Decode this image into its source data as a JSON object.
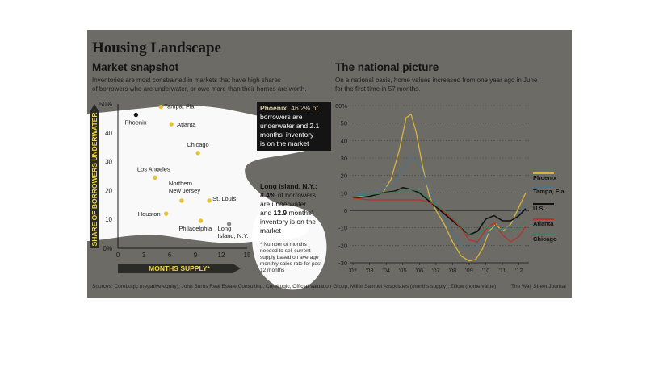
{
  "header": {
    "title": "Housing Landscape"
  },
  "left": {
    "subtitle": "Market snapshot",
    "description_1": "Inventories are most constrained in markets that have high shares",
    "description_2": "of borrowers who are underwater, or owe more than their homes are worth."
  },
  "right": {
    "subtitle": "The national picture",
    "description_1": "On a national basis, home values increased from one year ago in June",
    "description_2": "for the first time in 57 months."
  },
  "callouts": {
    "phoenix": {
      "line1_bold": "Phoenix:",
      "line1_rest": " 46.2% of",
      "line2": "borrowers are",
      "line3": "underwater and 2.1",
      "line4": "months' inventory",
      "line5": "is on the market"
    },
    "long_island": {
      "line1": "Long Island, N.Y.:",
      "line2_bold": "8.4%",
      "line2_rest": " of borrowers",
      "line3": "are underwater",
      "line4_pre": "and ",
      "line4_bold": "12.9",
      "line4_rest": " months'",
      "line5": "inventory is on the",
      "line6": "market"
    },
    "footnote": "* Number of months needed to sell current supply based on average monthly sales rate for past 12 months"
  },
  "footer": {
    "source": "Sources: CoreLogic (negative equity); John Burns Real Estate Consulting, CoreLogic, Official Valuation Group, Miller Samuel Associates (months supply); Zillow (home value)",
    "credit": "The Wall Street Journal"
  },
  "colors": {
    "background": "#6c6b66",
    "highlight": "#ffffff",
    "dot": "#e2c13a",
    "dot_dark": "#1a1a1a",
    "axis_label": "#f2d74e",
    "phoenix": "#d8b43b",
    "tampa": "#4f7389",
    "us": "#111111",
    "atlanta": "#b5332b",
    "chicago": "#3e7f5a"
  },
  "chart_data": [
    {
      "type": "scatter",
      "title": "",
      "xlabel": "MONTHS SUPPLY*",
      "ylabel": "SHARE OF BORROWERS UNDERWATER",
      "xlim": [
        0,
        15
      ],
      "ylim": [
        0,
        50
      ],
      "xticks": [
        0,
        3,
        6,
        9,
        12,
        15
      ],
      "yticks": [
        0,
        10,
        20,
        30,
        40,
        50
      ],
      "ytick_labels": [
        "0%",
        "10",
        "20",
        "30",
        "40",
        "50%"
      ],
      "points": [
        {
          "label": "Phoenix",
          "x": 2.1,
          "y": 46.2,
          "highlight": true
        },
        {
          "label": "Tampa, Fla.",
          "x": 5.0,
          "y": 49.0
        },
        {
          "label": "Atlanta",
          "x": 6.2,
          "y": 43.0
        },
        {
          "label": "Chicago",
          "x": 9.3,
          "y": 33.0
        },
        {
          "label": "Los Angeles",
          "x": 4.3,
          "y": 24.5
        },
        {
          "label": "Northern New Jersey",
          "x": 7.4,
          "y": 16.5
        },
        {
          "label": "St. Louis",
          "x": 10.6,
          "y": 16.5
        },
        {
          "label": "Houston",
          "x": 5.6,
          "y": 12.0
        },
        {
          "label": "Philadelphia",
          "x": 9.6,
          "y": 9.5
        },
        {
          "label": "Long Island, N.Y.",
          "x": 12.9,
          "y": 8.4,
          "highlight": true
        }
      ]
    },
    {
      "type": "line",
      "title": "",
      "xlabel": "",
      "ylabel": "",
      "xlim": [
        2001.8,
        2012.6
      ],
      "ylim": [
        -30,
        60
      ],
      "yticks": [
        -30,
        -20,
        -10,
        0,
        10,
        20,
        30,
        40,
        50,
        60
      ],
      "ytick_labels": [
        "-30",
        "-20",
        "-10",
        "0",
        "10",
        "20",
        "30",
        "40",
        "50",
        "60%"
      ],
      "xticks": [
        2002,
        2003,
        2004,
        2005,
        2006,
        2007,
        2008,
        2009,
        2010,
        2011,
        2012
      ],
      "xtick_labels": [
        "'02",
        "'03",
        "'04",
        "'05",
        "'06",
        "'07",
        "'08",
        "'09",
        "'10",
        "'11",
        "'12"
      ],
      "series": [
        {
          "name": "Phoenix",
          "x": [
            2002,
            2003,
            2003.8,
            2004.3,
            2004.8,
            2005.2,
            2005.5,
            2005.8,
            2006.2,
            2006.6,
            2007,
            2007.5,
            2008,
            2008.5,
            2009,
            2009.4,
            2009.8,
            2010.2,
            2010.6,
            2011,
            2011.5,
            2012,
            2012.4
          ],
          "y": [
            8,
            8,
            10,
            18,
            35,
            53,
            55,
            45,
            25,
            8,
            0,
            -8,
            -18,
            -26,
            -29,
            -28,
            -22,
            -12,
            -8,
            -12,
            -8,
            2,
            10
          ]
        },
        {
          "name": "Tampa, Fla.",
          "x": [
            2002,
            2003,
            2003.8,
            2004.4,
            2005,
            2005.5,
            2006,
            2006.5,
            2007,
            2007.5,
            2008,
            2008.5,
            2009,
            2009.5,
            2010,
            2010.5,
            2011,
            2011.5,
            2012,
            2012.4
          ],
          "y": [
            9,
            10,
            12,
            15,
            23,
            31,
            27,
            14,
            4,
            -5,
            -13,
            -20,
            -22,
            -20,
            -14,
            -10,
            -11,
            -9,
            -2,
            3
          ]
        },
        {
          "name": "U.S.",
          "x": [
            2002,
            2003,
            2003.8,
            2004.5,
            2005,
            2005.5,
            2006,
            2006.5,
            2007,
            2007.5,
            2008,
            2008.5,
            2009,
            2009.5,
            2010,
            2010.5,
            2011,
            2011.5,
            2012,
            2012.4
          ],
          "y": [
            7,
            8,
            10,
            11,
            13,
            12,
            10,
            6,
            2,
            -2,
            -6,
            -10,
            -14,
            -12,
            -5,
            -3,
            -6,
            -6,
            -3,
            1
          ]
        },
        {
          "name": "Atlanta",
          "x": [
            2002,
            2003,
            2004,
            2005,
            2006,
            2006.5,
            2007,
            2007.5,
            2008,
            2008.5,
            2009,
            2009.5,
            2010,
            2010.5,
            2011,
            2011.5,
            2012,
            2012.4
          ],
          "y": [
            7,
            6,
            6,
            6,
            6,
            5,
            3,
            -1,
            -5,
            -10,
            -17,
            -18,
            -11,
            -7,
            -14,
            -18,
            -15,
            -9
          ]
        },
        {
          "name": "Chicago",
          "x": [
            2002,
            2003,
            2004,
            2005,
            2005.5,
            2006,
            2006.5,
            2007,
            2007.5,
            2008,
            2008.5,
            2009,
            2009.5,
            2010,
            2010.5,
            2011,
            2011.5,
            2012,
            2012.4
          ],
          "y": [
            8,
            9,
            10,
            11,
            12,
            11,
            7,
            3,
            0,
            -4,
            -9,
            -14,
            -14,
            -10,
            -9,
            -12,
            -12,
            -10,
            -6
          ]
        }
      ]
    }
  ]
}
